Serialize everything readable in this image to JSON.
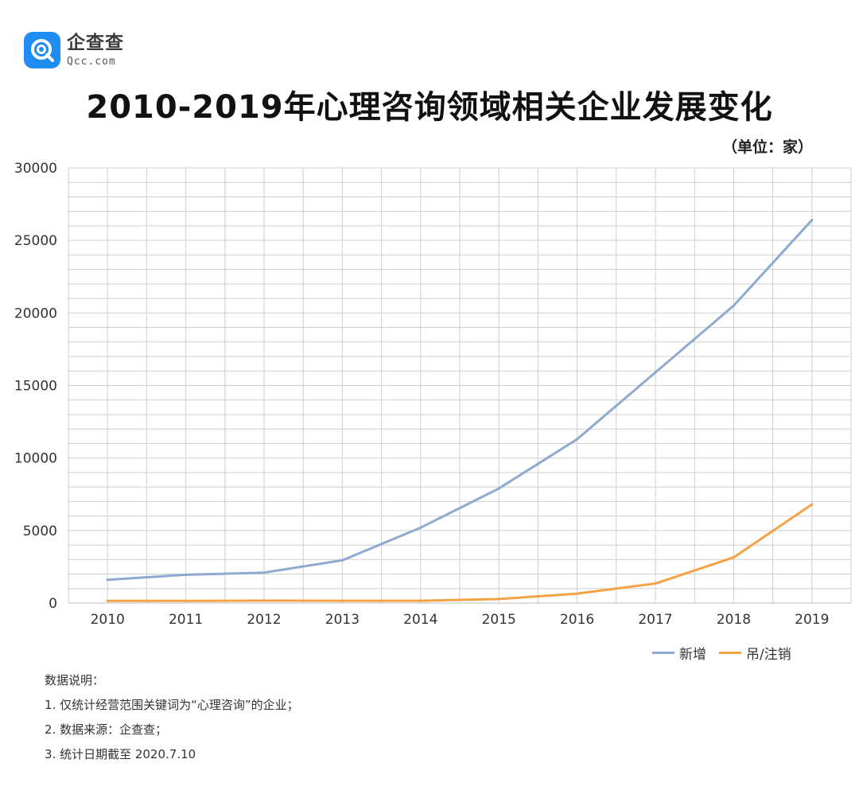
{
  "brand": {
    "name": "企查查",
    "domain": "Qcc.com",
    "color": "#1e8cf0"
  },
  "unit_note": "（单位：家）",
  "notes": [
    "数据说明：",
    "1. 仅统计经营范围关键词为“心理咨询”的企业；",
    "2. 数据来源：企查查；",
    "3. 统计日期截至 2020.7.10"
  ],
  "chart_data": {
    "type": "line",
    "title": "2010-2019年心理咨询领域相关企业发展变化",
    "categories": [
      "2010",
      "2011",
      "2012",
      "2013",
      "2014",
      "2015",
      "2016",
      "2017",
      "2018",
      "2019"
    ],
    "series": [
      {
        "name": "新增",
        "color": "#8fa9d0",
        "values": [
          1600,
          1950,
          2100,
          2950,
          5200,
          7900,
          11300,
          15900,
          20500,
          26400
        ]
      },
      {
        "name": "吊/注销",
        "color": "#f5a146",
        "values": [
          150,
          150,
          170,
          160,
          160,
          280,
          650,
          1350,
          3150,
          6800
        ]
      }
    ],
    "y_ticks": [
      "0",
      "5000",
      "10000",
      "15000",
      "20000",
      "25000",
      "30000"
    ],
    "ylim": [
      0,
      30000
    ],
    "grid": true,
    "legend": "bottom-right"
  }
}
